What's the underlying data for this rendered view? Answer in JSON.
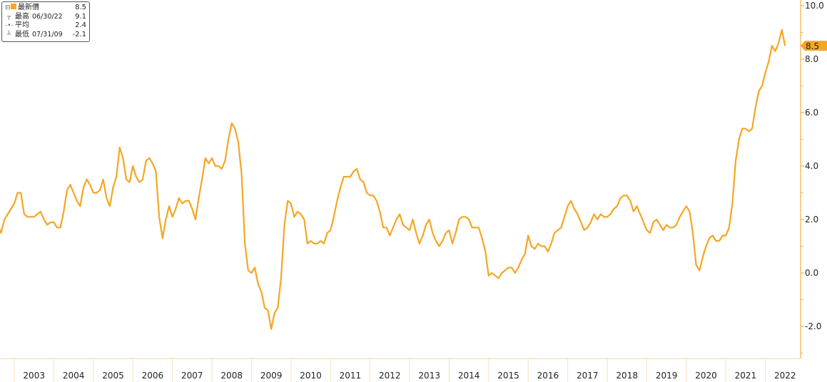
{
  "chart_data": {
    "type": "line",
    "title": "",
    "xlabel": "",
    "ylabel": "",
    "ylim": [
      -3.2,
      10.2
    ],
    "y_ticks": [
      "10.0",
      "8.0",
      "6.0",
      "4.0",
      "2.0",
      "0.0",
      "-2.0"
    ],
    "x_ticks": [
      "2003",
      "2004",
      "2005",
      "2006",
      "2007",
      "2008",
      "2009",
      "2010",
      "2011",
      "2012",
      "2013",
      "2014",
      "2015",
      "2016",
      "2017",
      "2018",
      "2019",
      "2020",
      "2021",
      "2022"
    ],
    "grid": false,
    "legend_position": "top-left",
    "series": [
      {
        "name": "最新價",
        "color": "#f5a623",
        "start_month": "2002-08",
        "frequency": "monthly",
        "values": [
          1.8,
          1.5,
          2.0,
          2.2,
          2.4,
          2.6,
          3.0,
          3.0,
          2.2,
          2.1,
          2.1,
          2.1,
          2.2,
          2.3,
          2.0,
          1.8,
          1.9,
          1.9,
          1.7,
          1.7,
          2.3,
          3.1,
          3.3,
          3.0,
          2.7,
          2.5,
          3.2,
          3.5,
          3.3,
          3.0,
          3.0,
          3.1,
          3.5,
          2.8,
          2.5,
          3.2,
          3.6,
          4.7,
          4.3,
          3.5,
          3.4,
          4.0,
          3.6,
          3.4,
          3.5,
          4.2,
          4.3,
          4.1,
          3.8,
          2.1,
          1.3,
          2.0,
          2.5,
          2.1,
          2.4,
          2.8,
          2.6,
          2.7,
          2.7,
          2.4,
          2.0,
          2.8,
          3.5,
          4.3,
          4.1,
          4.3,
          4.0,
          4.0,
          3.9,
          4.2,
          5.0,
          5.6,
          5.4,
          4.9,
          3.7,
          1.1,
          0.1,
          0.0,
          0.2,
          -0.4,
          -0.7,
          -1.3,
          -1.4,
          -2.1,
          -1.5,
          -1.3,
          -0.2,
          1.8,
          2.7,
          2.6,
          2.1,
          2.3,
          2.2,
          2.0,
          1.1,
          1.2,
          1.1,
          1.1,
          1.2,
          1.1,
          1.5,
          1.6,
          2.1,
          2.7,
          3.2,
          3.6,
          3.6,
          3.6,
          3.8,
          3.9,
          3.5,
          3.4,
          3.0,
          2.9,
          2.9,
          2.7,
          2.3,
          1.7,
          1.7,
          1.4,
          1.7,
          2.0,
          2.2,
          1.8,
          1.7,
          1.6,
          2.0,
          1.5,
          1.1,
          1.4,
          1.8,
          2.0,
          1.5,
          1.2,
          1.0,
          1.2,
          1.5,
          1.6,
          1.1,
          1.5,
          2.0,
          2.1,
          2.1,
          2.0,
          1.7,
          1.7,
          1.7,
          1.3,
          0.8,
          -0.1,
          0.0,
          -0.1,
          -0.2,
          0.0,
          0.1,
          0.2,
          0.2,
          0.0,
          0.2,
          0.5,
          0.7,
          1.4,
          1.0,
          0.9,
          1.1,
          1.0,
          1.0,
          0.8,
          1.1,
          1.5,
          1.6,
          1.7,
          2.1,
          2.5,
          2.7,
          2.4,
          2.2,
          1.9,
          1.6,
          1.7,
          1.9,
          2.2,
          2.0,
          2.2,
          2.1,
          2.1,
          2.2,
          2.4,
          2.5,
          2.8,
          2.9,
          2.9,
          2.7,
          2.3,
          2.5,
          2.2,
          1.9,
          1.6,
          1.5,
          1.9,
          2.0,
          1.8,
          1.6,
          1.8,
          1.7,
          1.7,
          1.8,
          2.1,
          2.3,
          2.5,
          2.3,
          1.5,
          0.3,
          0.1,
          0.6,
          1.0,
          1.3,
          1.4,
          1.2,
          1.2,
          1.4,
          1.4,
          1.7,
          2.6,
          4.2,
          5.0,
          5.4,
          5.4,
          5.3,
          5.4,
          6.2,
          6.8,
          7.0,
          7.5,
          7.9,
          8.5,
          8.3,
          8.6,
          9.1,
          8.5
        ]
      }
    ],
    "last_value_label": "8.5",
    "legend": {
      "rows": [
        {
          "label": "最新價",
          "date": "",
          "value": "8.5"
        },
        {
          "label": "最高",
          "date": "06/30/22",
          "value": "9.1"
        },
        {
          "label": "平均",
          "date": "",
          "value": "2.4"
        },
        {
          "label": "最低",
          "date": "07/31/09",
          "value": "-2.1"
        }
      ]
    }
  }
}
